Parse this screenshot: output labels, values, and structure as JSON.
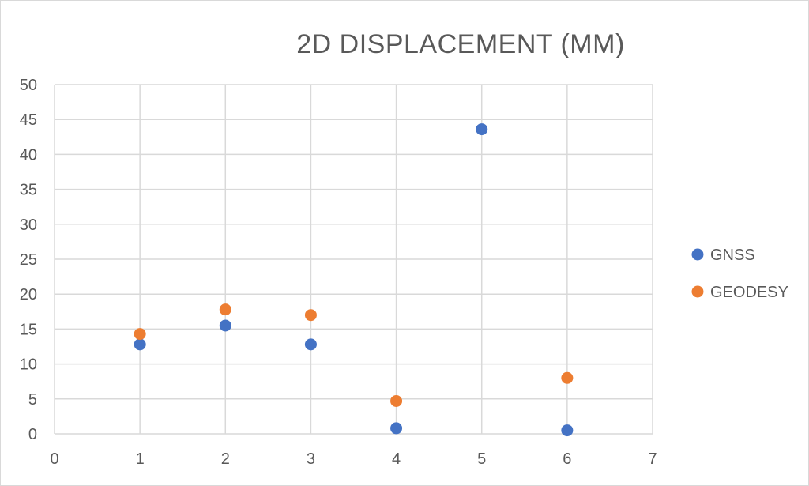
{
  "chart_data": {
    "type": "scatter",
    "title": "2D DISPLACEMENT (MM)",
    "xlabel": "",
    "ylabel": "",
    "xlim": [
      0,
      7
    ],
    "ylim": [
      0,
      50
    ],
    "x_ticks": [
      0,
      1,
      2,
      3,
      4,
      5,
      6,
      7
    ],
    "y_ticks": [
      0,
      5,
      10,
      15,
      20,
      25,
      30,
      35,
      40,
      45,
      50
    ],
    "grid": true,
    "legend_position": "right",
    "series": [
      {
        "name": "GNSS",
        "color": "#4472C4",
        "points": [
          {
            "x": 1,
            "y": 12.8
          },
          {
            "x": 2,
            "y": 15.5
          },
          {
            "x": 3,
            "y": 12.8
          },
          {
            "x": 4,
            "y": 0.8
          },
          {
            "x": 5,
            "y": 43.6
          },
          {
            "x": 6,
            "y": 0.5
          }
        ]
      },
      {
        "name": "GEODESY",
        "color": "#ED7D31",
        "points": [
          {
            "x": 1,
            "y": 14.3
          },
          {
            "x": 2,
            "y": 17.8
          },
          {
            "x": 3,
            "y": 17.0
          },
          {
            "x": 4,
            "y": 4.7
          },
          {
            "x": 6,
            "y": 8.0
          }
        ]
      }
    ]
  }
}
